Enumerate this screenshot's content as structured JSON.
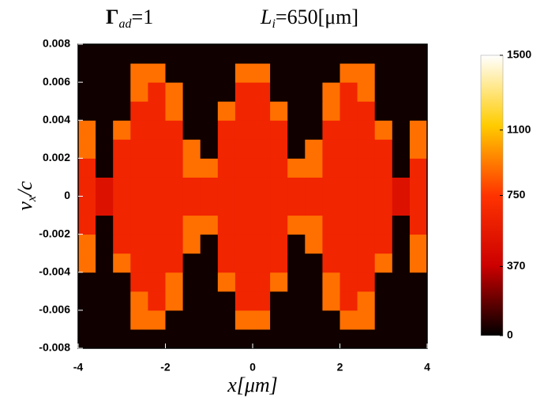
{
  "chart_data": {
    "type": "heatmap",
    "title_left": {
      "main": "Γ",
      "sub": "ad",
      "rest": "=1"
    },
    "title_right": {
      "main": "L",
      "sub": "i",
      "rest": "=650[μm]"
    },
    "xlabel": "x[μm]",
    "ylabel": {
      "main": "v",
      "sub": "x",
      "rest": "/c"
    },
    "xlim": [
      -4,
      4
    ],
    "ylim": [
      -0.008,
      0.008
    ],
    "xticks": [
      -4,
      -2,
      0,
      2,
      4
    ],
    "yticks": [
      -0.008,
      -0.006,
      -0.004,
      -0.002,
      0,
      0.002,
      0.004,
      0.006,
      0.008
    ],
    "x_bins": [
      -4,
      -3.6,
      -3.2,
      -2.8,
      -2.4,
      -2,
      -1.6,
      -1.2,
      -0.8,
      -0.4,
      0,
      0.4,
      0.8,
      1.2,
      1.6,
      2,
      2.4,
      2.8,
      3.2,
      3.6,
      4
    ],
    "y_bins": [
      -0.008,
      -0.007,
      -0.006,
      -0.005,
      -0.004,
      -0.003,
      -0.002,
      -0.001,
      0,
      0.001,
      0.002,
      0.003,
      0.004,
      0.005,
      0.006,
      0.007,
      0.008
    ],
    "z": [
      [
        30,
        30,
        30,
        30,
        30,
        30,
        30,
        30,
        30,
        30,
        30,
        30,
        30,
        30,
        30,
        30,
        30,
        30,
        30,
        30
      ],
      [
        30,
        30,
        30,
        900,
        900,
        30,
        30,
        30,
        30,
        900,
        900,
        30,
        30,
        30,
        30,
        900,
        900,
        30,
        30,
        30
      ],
      [
        30,
        30,
        30,
        900,
        650,
        900,
        30,
        30,
        30,
        650,
        650,
        30,
        30,
        30,
        900,
        650,
        900,
        30,
        30,
        30
      ],
      [
        30,
        30,
        30,
        650,
        650,
        900,
        30,
        30,
        900,
        650,
        650,
        900,
        30,
        30,
        900,
        650,
        650,
        30,
        30,
        30
      ],
      [
        900,
        30,
        900,
        650,
        650,
        650,
        30,
        30,
        650,
        650,
        650,
        650,
        30,
        30,
        650,
        650,
        650,
        900,
        30,
        900
      ],
      [
        900,
        30,
        650,
        650,
        650,
        650,
        900,
        30,
        650,
        650,
        650,
        650,
        30,
        900,
        650,
        650,
        650,
        650,
        30,
        900
      ],
      [
        650,
        30,
        650,
        650,
        650,
        650,
        900,
        900,
        650,
        650,
        650,
        650,
        900,
        900,
        650,
        650,
        650,
        650,
        30,
        650
      ],
      [
        650,
        500,
        650,
        650,
        650,
        650,
        650,
        650,
        650,
        650,
        650,
        650,
        650,
        650,
        650,
        650,
        650,
        650,
        500,
        650
      ],
      [
        650,
        500,
        650,
        650,
        650,
        650,
        650,
        650,
        650,
        650,
        650,
        650,
        650,
        650,
        650,
        650,
        650,
        650,
        500,
        650
      ],
      [
        650,
        30,
        650,
        650,
        650,
        650,
        900,
        900,
        650,
        650,
        650,
        650,
        900,
        900,
        650,
        650,
        650,
        650,
        30,
        650
      ],
      [
        900,
        30,
        650,
        650,
        650,
        650,
        900,
        30,
        650,
        650,
        650,
        650,
        30,
        900,
        650,
        650,
        650,
        650,
        30,
        900
      ],
      [
        900,
        30,
        900,
        650,
        650,
        650,
        30,
        30,
        650,
        650,
        650,
        650,
        30,
        30,
        650,
        650,
        650,
        900,
        30,
        900
      ],
      [
        30,
        30,
        30,
        650,
        650,
        900,
        30,
        30,
        900,
        650,
        650,
        900,
        30,
        30,
        900,
        650,
        650,
        30,
        30,
        30
      ],
      [
        30,
        30,
        30,
        900,
        650,
        900,
        30,
        30,
        30,
        650,
        650,
        30,
        30,
        30,
        900,
        650,
        900,
        30,
        30,
        30
      ],
      [
        30,
        30,
        30,
        900,
        900,
        30,
        30,
        30,
        30,
        900,
        900,
        30,
        30,
        30,
        30,
        900,
        900,
        30,
        30,
        30
      ],
      [
        30,
        30,
        30,
        30,
        30,
        30,
        30,
        30,
        30,
        30,
        30,
        30,
        30,
        30,
        30,
        30,
        30,
        30,
        30,
        30
      ]
    ],
    "zlim": [
      0,
      1500
    ],
    "colorbar_ticks": [
      0,
      370,
      750,
      1100,
      1500
    ],
    "colormap": [
      "#000000",
      "#cc0000",
      "#ff3300",
      "#ffcc00",
      "#ffffff"
    ]
  }
}
